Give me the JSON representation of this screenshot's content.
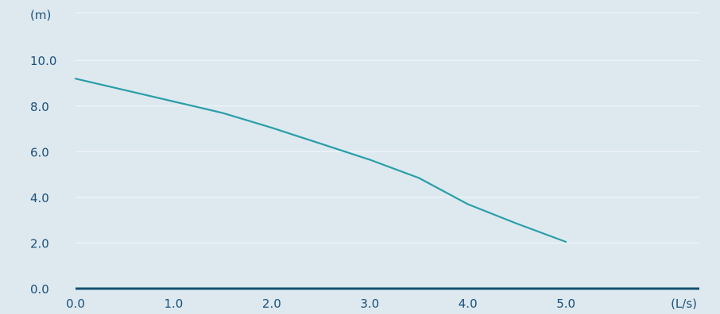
{
  "colors": {
    "background": "#dde9ef",
    "text": "#1a4f7a",
    "grid": "#f4f8fa",
    "axis": "#13506f",
    "series": "#2a9ea8"
  },
  "chart_data": {
    "type": "line",
    "title": "",
    "ylabel": "(m)",
    "xlabel": "(L/s)",
    "xlim": [
      0,
      6.36
    ],
    "ylim": [
      0,
      12.3
    ],
    "x_ticks": [
      0,
      1,
      2,
      3,
      4,
      5
    ],
    "x_tick_labels": [
      "0.0",
      "1.0",
      "2.0",
      "3.0",
      "4.0",
      "5.0"
    ],
    "y_ticks": [
      0,
      2,
      4,
      6,
      8,
      10
    ],
    "y_tick_labels": [
      "0.0",
      "2.0",
      "4.0",
      "6.0",
      "8.0",
      "10.0"
    ],
    "grid": true,
    "series": [
      {
        "name": "",
        "x": [
          0.0,
          0.5,
          1.0,
          1.5,
          2.0,
          2.5,
          3.0,
          3.5,
          4.0,
          4.5,
          5.0
        ],
        "y": [
          9.2,
          8.7,
          8.2,
          7.7,
          7.05,
          6.35,
          5.65,
          4.85,
          3.7,
          2.85,
          2.05
        ]
      }
    ]
  }
}
